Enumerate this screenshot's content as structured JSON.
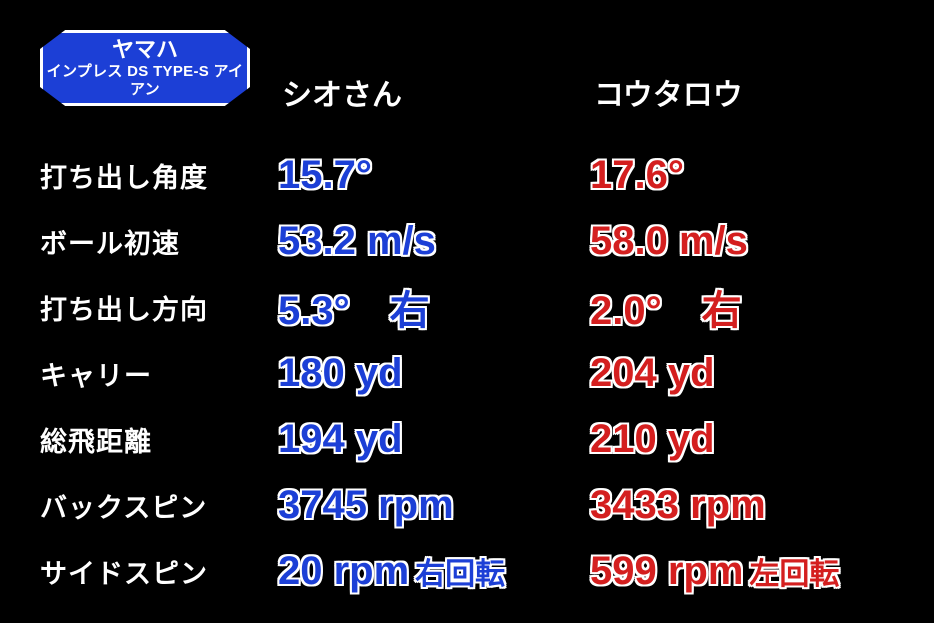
{
  "badge": {
    "line1": "ヤマハ",
    "line2": "インプレス DS TYPE-S アイアン",
    "bg_color": "#1c3fd6",
    "border_color": "#ffffff"
  },
  "players": {
    "p1": {
      "name": "シオさん",
      "color": "#1c3fd6",
      "outline": "#ffffff"
    },
    "p2": {
      "name": "コウタロウ",
      "color": "#d41f1f",
      "outline": "#ffffff"
    }
  },
  "rows": [
    {
      "label": "打ち出し角度",
      "p1": "15.7°",
      "p2": "17.6°",
      "p1_suffix": "",
      "p2_suffix": ""
    },
    {
      "label": "ボール初速",
      "p1": "53.2 m/s",
      "p2": "58.0 m/s",
      "p1_suffix": "",
      "p2_suffix": ""
    },
    {
      "label": "打ち出し方向",
      "p1": "5.3° 右",
      "p2": "2.0° 右",
      "p1_suffix": "",
      "p2_suffix": ""
    },
    {
      "label": "キャリー",
      "p1": "180 yd",
      "p2": "204 yd",
      "p1_suffix": "",
      "p2_suffix": ""
    },
    {
      "label": "総飛距離",
      "p1": "194 yd",
      "p2": "210 yd",
      "p1_suffix": "",
      "p2_suffix": ""
    },
    {
      "label": "バックスピン",
      "p1": "3745 rpm",
      "p2": "3433 rpm",
      "p1_suffix": "",
      "p2_suffix": ""
    },
    {
      "label": "サイドスピン",
      "p1": "20 rpm",
      "p2": "599 rpm",
      "p1_suffix": "右回転",
      "p2_suffix": "左回転"
    }
  ],
  "background_color": "#000000",
  "label_color": "#ffffff",
  "label_fontsize": 27,
  "value_fontsize": 40,
  "suffix_fontsize": 30,
  "header_fontsize": 30
}
